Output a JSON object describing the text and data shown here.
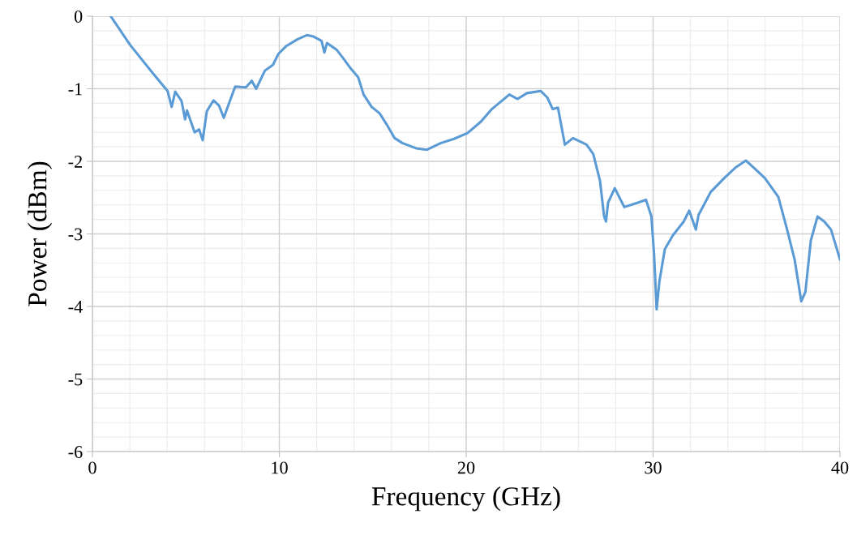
{
  "chart_data": {
    "type": "line",
    "xlabel": "Frequency (GHz)",
    "ylabel": "Power (dBm)",
    "xlim": [
      0,
      40
    ],
    "ylim": [
      -6,
      0
    ],
    "xticks": [
      0,
      10,
      20,
      30,
      40
    ],
    "yticks": [
      -6,
      -5,
      -4,
      -3,
      -2,
      -1,
      0
    ],
    "grid": true,
    "marker": "none",
    "line_style": "solid",
    "series": [
      {
        "color": "#5b9bd5",
        "x": [
          0.98,
          2.0,
          3.15,
          4.02,
          4.24,
          4.43,
          4.77,
          4.96,
          5.06,
          5.47,
          5.71,
          5.9,
          6.12,
          6.48,
          6.77,
          7.03,
          7.35,
          7.64,
          8.21,
          8.53,
          8.76,
          9.23,
          9.66,
          9.95,
          10.38,
          10.96,
          11.47,
          11.83,
          12.26,
          12.41,
          12.55,
          13.06,
          13.42,
          13.85,
          14.22,
          14.51,
          14.94,
          15.37,
          15.74,
          16.17,
          16.6,
          17.32,
          17.9,
          18.63,
          19.35,
          20.07,
          20.8,
          21.37,
          22.31,
          22.75,
          23.25,
          23.98,
          24.34,
          24.63,
          24.91,
          25.28,
          25.71,
          26.44,
          26.8,
          27.16,
          27.38,
          27.48,
          27.59,
          27.95,
          28.46,
          29.18,
          29.62,
          29.91,
          30.05,
          30.19,
          30.34,
          30.63,
          31.06,
          31.64,
          31.93,
          32.29,
          32.43,
          33.09,
          33.81,
          34.39,
          34.97,
          35.4,
          35.98,
          36.7,
          37.14,
          37.57,
          37.93,
          38.15,
          38.44,
          38.8,
          39.16,
          39.52,
          40.0
        ],
        "values": [
          0,
          -0.39,
          -0.76,
          -1.03,
          -1.25,
          -1.04,
          -1.17,
          -1.42,
          -1.3,
          -1.6,
          -1.56,
          -1.71,
          -1.31,
          -1.16,
          -1.23,
          -1.4,
          -1.17,
          -0.97,
          -0.98,
          -0.89,
          -1.0,
          -0.75,
          -0.67,
          -0.52,
          -0.41,
          -0.32,
          -0.26,
          -0.28,
          -0.34,
          -0.5,
          -0.37,
          -0.46,
          -0.58,
          -0.73,
          -0.84,
          -1.08,
          -1.25,
          -1.34,
          -1.49,
          -1.68,
          -1.75,
          -1.82,
          -1.84,
          -1.75,
          -1.69,
          -1.61,
          -1.45,
          -1.28,
          -1.08,
          -1.14,
          -1.06,
          -1.03,
          -1.12,
          -1.28,
          -1.26,
          -1.77,
          -1.68,
          -1.77,
          -1.9,
          -2.27,
          -2.76,
          -2.83,
          -2.57,
          -2.37,
          -2.63,
          -2.57,
          -2.53,
          -2.76,
          -3.27,
          -4.04,
          -3.65,
          -3.21,
          -3.02,
          -2.83,
          -2.68,
          -2.94,
          -2.74,
          -2.42,
          -2.23,
          -2.09,
          -1.99,
          -2.09,
          -2.23,
          -2.49,
          -2.91,
          -3.35,
          -3.93,
          -3.8,
          -3.09,
          -2.76,
          -2.83,
          -2.94,
          -3.35
        ]
      }
    ]
  }
}
